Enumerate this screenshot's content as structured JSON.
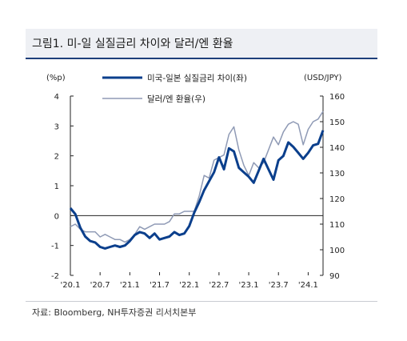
{
  "title": "그림1. 미-일 실질금리 차이와 달러/엔 환율",
  "source": "자료: Bloomberg, NH투자증권 리서치본부",
  "chart_data": {
    "type": "line",
    "left_unit": "(%p)",
    "right_unit": "(USD/JPY)",
    "left_ylim": [
      -2,
      4
    ],
    "right_ylim": [
      90,
      160
    ],
    "left_ticks": [
      "4",
      "3",
      "2",
      "1",
      "0",
      "-1",
      "-2"
    ],
    "right_ticks": [
      "160",
      "150",
      "140",
      "130",
      "120",
      "110",
      "100",
      "90"
    ],
    "x_ticks": [
      "'20.1",
      "'20.7",
      "'21.1",
      "'21.7",
      "'22.1",
      "'22.7",
      "'23.1",
      "'23.7",
      "'24.1"
    ],
    "x_range": [
      "2020-01",
      "2024-04"
    ],
    "colors": {
      "spread": "#0b3f8c",
      "fx": "#8f9ab5",
      "title_rule": "#1e3f7a"
    },
    "series": [
      {
        "name": "미국-일본 실질금리 차이(좌)",
        "axis": "left",
        "x": [
          "2020-01",
          "2020-02",
          "2020-03",
          "2020-04",
          "2020-05",
          "2020-06",
          "2020-07",
          "2020-08",
          "2020-09",
          "2020-10",
          "2020-11",
          "2020-12",
          "2021-01",
          "2021-02",
          "2021-03",
          "2021-04",
          "2021-05",
          "2021-06",
          "2021-07",
          "2021-08",
          "2021-09",
          "2021-10",
          "2021-11",
          "2021-12",
          "2022-01",
          "2022-02",
          "2022-03",
          "2022-04",
          "2022-05",
          "2022-06",
          "2022-07",
          "2022-08",
          "2022-09",
          "2022-10",
          "2022-11",
          "2022-12",
          "2023-01",
          "2023-02",
          "2023-03",
          "2023-04",
          "2023-05",
          "2023-06",
          "2023-07",
          "2023-08",
          "2023-09",
          "2023-10",
          "2023-11",
          "2023-12",
          "2024-01",
          "2024-02",
          "2024-03",
          "2024-04"
        ],
        "values": [
          0.25,
          0.05,
          -0.4,
          -0.7,
          -0.85,
          -0.9,
          -1.05,
          -1.1,
          -1.05,
          -1.0,
          -1.05,
          -1.0,
          -0.85,
          -0.65,
          -0.55,
          -0.6,
          -0.75,
          -0.6,
          -0.8,
          -0.75,
          -0.7,
          -0.55,
          -0.65,
          -0.6,
          -0.35,
          0.1,
          0.45,
          0.85,
          1.15,
          1.45,
          1.95,
          1.55,
          2.25,
          2.15,
          1.6,
          1.45,
          1.3,
          1.1,
          1.5,
          1.9,
          1.55,
          1.2,
          1.85,
          2.0,
          2.45,
          2.3,
          2.1,
          1.9,
          2.1,
          2.35,
          2.4,
          2.85
        ]
      },
      {
        "name": "달러/엔 환율(우)",
        "axis": "right",
        "x": [
          "2020-01",
          "2020-02",
          "2020-03",
          "2020-04",
          "2020-05",
          "2020-06",
          "2020-07",
          "2020-08",
          "2020-09",
          "2020-10",
          "2020-11",
          "2020-12",
          "2021-01",
          "2021-02",
          "2021-03",
          "2021-04",
          "2021-05",
          "2021-06",
          "2021-07",
          "2021-08",
          "2021-09",
          "2021-10",
          "2021-11",
          "2021-12",
          "2022-01",
          "2022-02",
          "2022-03",
          "2022-04",
          "2022-05",
          "2022-06",
          "2022-07",
          "2022-08",
          "2022-09",
          "2022-10",
          "2022-11",
          "2022-12",
          "2023-01",
          "2023-02",
          "2023-03",
          "2023-04",
          "2023-05",
          "2023-06",
          "2023-07",
          "2023-08",
          "2023-09",
          "2023-10",
          "2023-11",
          "2023-12",
          "2024-01",
          "2024-02",
          "2024-03",
          "2024-04"
        ],
        "values": [
          109,
          110,
          108,
          107,
          107,
          107,
          105,
          106,
          105,
          104,
          104,
          103,
          104,
          106,
          109,
          108,
          109,
          110,
          110,
          110,
          111,
          114,
          114,
          115,
          115,
          115,
          121,
          129,
          128,
          135,
          136,
          137,
          145,
          148,
          139,
          133,
          129,
          134,
          132,
          134,
          139,
          144,
          141,
          146,
          149,
          150,
          149,
          141,
          147,
          150,
          151,
          154
        ]
      }
    ]
  }
}
